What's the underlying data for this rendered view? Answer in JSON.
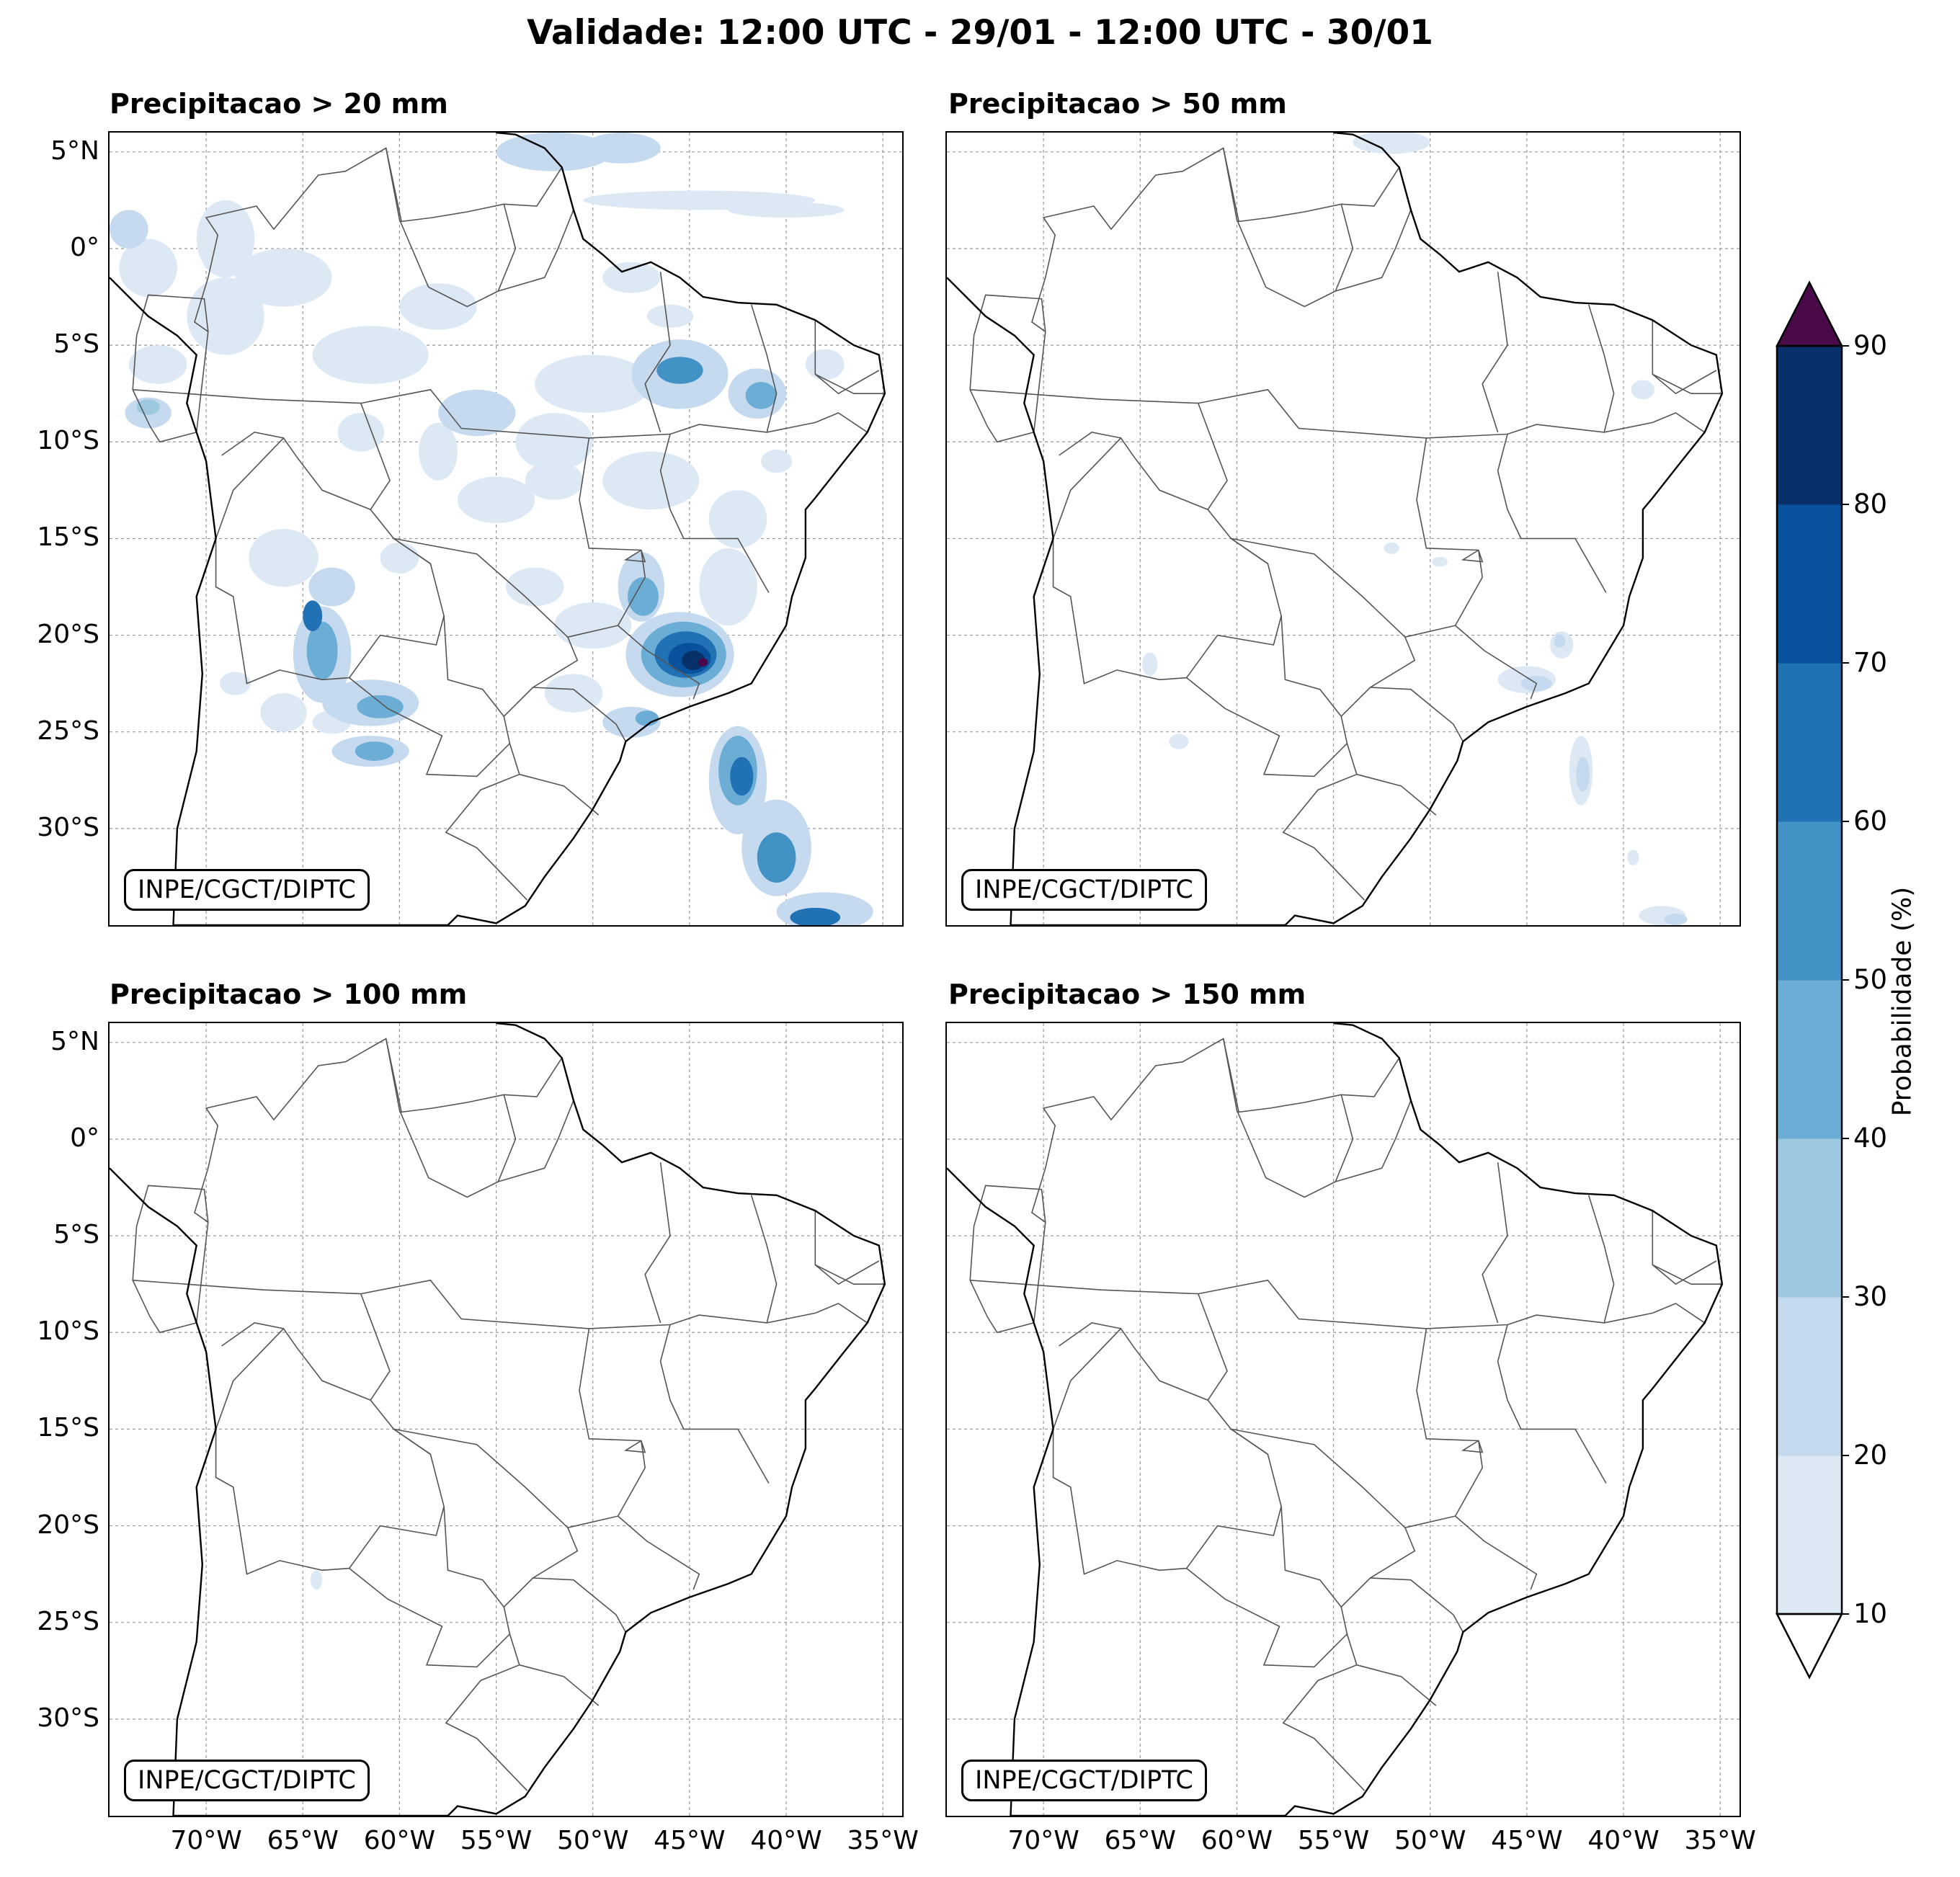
{
  "title": "Validade: 12:00 UTC - 29/01 - 12:00 UTC - 30/01",
  "panels": [
    {
      "title": "Precipitacao > 20 mm",
      "credit": "INPE/CGCT/DIPTC"
    },
    {
      "title": "Precipitacao > 50 mm",
      "credit": "INPE/CGCT/DIPTC"
    },
    {
      "title": "Precipitacao > 100 mm",
      "credit": "INPE/CGCT/DIPTC"
    },
    {
      "title": "Precipitacao > 150 mm",
      "credit": "INPE/CGCT/DIPTC"
    }
  ],
  "lat_ticks": [
    "5°N",
    "0°",
    "5°S",
    "10°S",
    "15°S",
    "20°S",
    "25°S",
    "30°S"
  ],
  "lon_ticks": [
    "70°W",
    "65°W",
    "60°W",
    "55°W",
    "50°W",
    "45°W",
    "40°W",
    "35°W"
  ],
  "colorbar": {
    "label": "Probabilidade (%)",
    "ticks": [
      "10",
      "20",
      "30",
      "40",
      "50",
      "60",
      "70",
      "80",
      "90"
    ],
    "colors": [
      "#dde8f5",
      "#c5daef",
      "#9dc9e0",
      "#6cadd6",
      "#4292c6",
      "#2171b5",
      "#08519c",
      "#08306b"
    ],
    "over_color": "#4a0a4a",
    "under_color": "#ffffff"
  },
  "map_style": {
    "land_border_color": "#555555",
    "coast_color": "#000000",
    "grid_color": "#999999"
  }
}
